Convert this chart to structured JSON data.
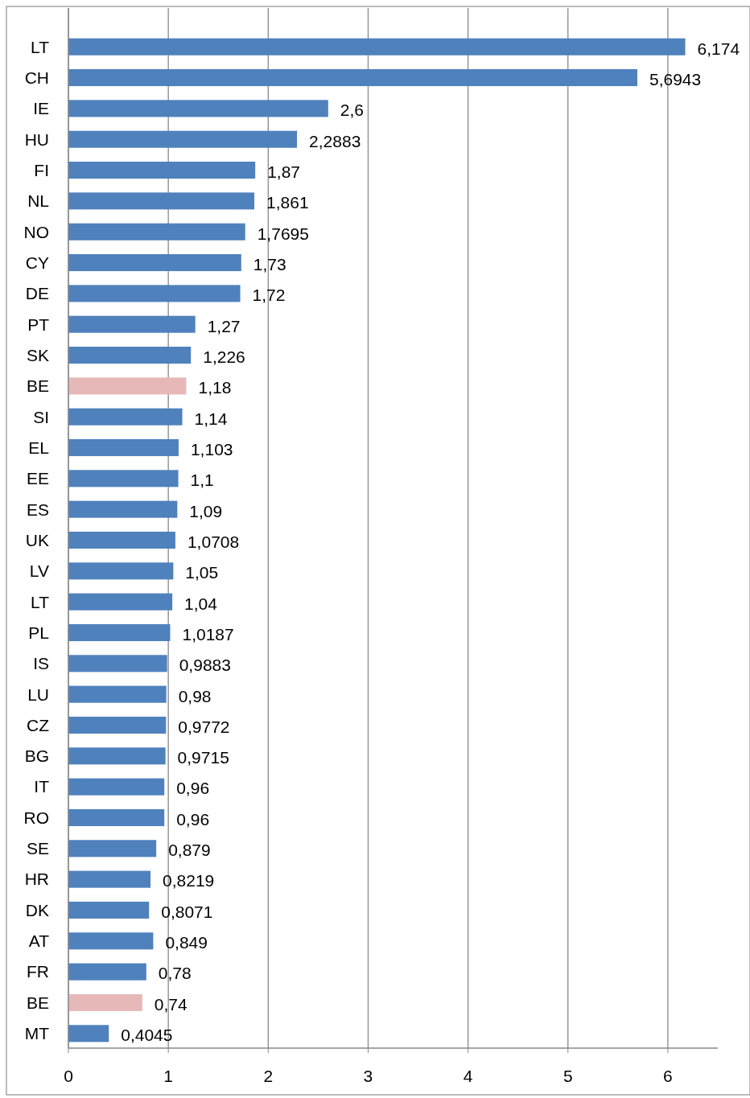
{
  "chart_data": {
    "type": "bar",
    "orientation": "horizontal",
    "categories": [
      "LT",
      "CH",
      "IE",
      "HU",
      "FI",
      "NL",
      "NO",
      "CY",
      "DE",
      "PT",
      "SK",
      "BE",
      "SI",
      "EL",
      "EE",
      "ES",
      "UK",
      "LV",
      "LT",
      "PL",
      "IS",
      "LU",
      "CZ",
      "BG",
      "IT",
      "RO",
      "SE",
      "HR",
      "DK",
      "AT",
      "FR",
      "BE",
      "MT"
    ],
    "values": [
      6.174,
      5.6943,
      2.6,
      2.2883,
      1.87,
      1.861,
      1.7695,
      1.73,
      1.72,
      1.27,
      1.226,
      1.18,
      1.14,
      1.103,
      1.1,
      1.09,
      1.0708,
      1.05,
      1.04,
      1.0187,
      0.9883,
      0.98,
      0.9772,
      0.9715,
      0.96,
      0.96,
      0.879,
      0.8219,
      0.8071,
      0.849,
      0.78,
      0.74,
      0.4045
    ],
    "value_labels": [
      "6,174",
      "5,6943",
      "2,6",
      "2,2883",
      "1,87",
      "1,861",
      "1,7695",
      "1,73",
      "1,72",
      "1,27",
      "1,226",
      "1,18",
      "1,14",
      "1,103",
      "1,1",
      "1,09",
      "1,0708",
      "1,05",
      "1,04",
      "1,0187",
      "0,9883",
      "0,98",
      "0,9772",
      "0,9715",
      "0,96",
      "0,96",
      "0,879",
      "0,8219",
      "0,8071",
      "0,849",
      "0,78",
      "0,74",
      "0,4045"
    ],
    "colors": [
      "#4f81bd",
      "#4f81bd",
      "#4f81bd",
      "#4f81bd",
      "#4f81bd",
      "#4f81bd",
      "#4f81bd",
      "#4f81bd",
      "#4f81bd",
      "#4f81bd",
      "#4f81bd",
      "#e6b9b8",
      "#4f81bd",
      "#4f81bd",
      "#4f81bd",
      "#4f81bd",
      "#4f81bd",
      "#4f81bd",
      "#4f81bd",
      "#4f81bd",
      "#4f81bd",
      "#4f81bd",
      "#4f81bd",
      "#4f81bd",
      "#4f81bd",
      "#4f81bd",
      "#4f81bd",
      "#4f81bd",
      "#4f81bd",
      "#4f81bd",
      "#4f81bd",
      "#e6b9b8",
      "#4f81bd"
    ],
    "xlim": [
      0,
      6.5
    ],
    "xticks": [
      0,
      1,
      2,
      3,
      4,
      5,
      6
    ],
    "grid": "x"
  }
}
